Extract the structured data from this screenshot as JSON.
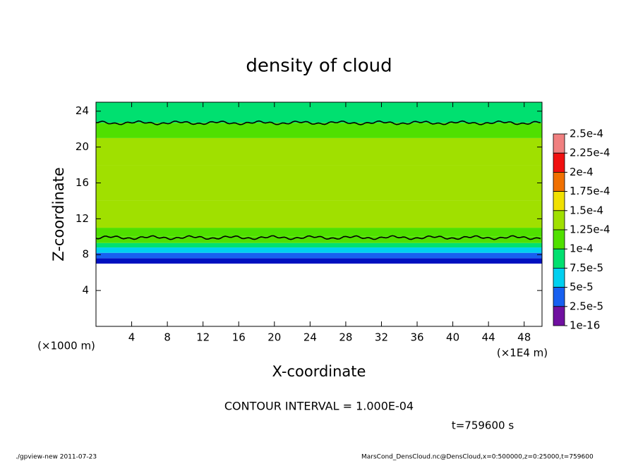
{
  "chart_data": {
    "type": "heatmap",
    "title": "density of cloud",
    "x_label": "X-coordinate",
    "y_label": "Z-coordinate",
    "x_unit": "(×1E4 m)",
    "y_unit": "(×1000 m)",
    "xlim": [
      0,
      50
    ],
    "xticks": [
      4,
      8,
      12,
      16,
      20,
      24,
      28,
      32,
      36,
      40,
      44,
      48
    ],
    "ylim": [
      0,
      25
    ],
    "yticks": [
      4,
      8,
      12,
      16,
      20,
      24
    ],
    "z_bins": [
      7,
      7.6,
      8.2,
      8.8,
      9.3,
      10,
      11,
      14,
      18,
      21,
      22.7,
      25
    ],
    "values": [
      1e-16,
      3e-05,
      6e-05,
      8.5e-05,
      0.000105,
      0.00012,
      0.000135,
      0.00014,
      0.00013,
      0.00011,
      9e-05
    ],
    "contour_lines": [
      9.9,
      22.7
    ],
    "levels": [
      {
        "value": 0.00025,
        "label": "2.5e-4"
      },
      {
        "value": 0.000225,
        "label": "2.25e-4"
      },
      {
        "value": 0.0002,
        "label": "2e-4"
      },
      {
        "value": 0.000175,
        "label": "1.75e-4"
      },
      {
        "value": 0.00015,
        "label": "1.5e-4"
      },
      {
        "value": 0.000125,
        "label": "1.25e-4"
      },
      {
        "value": 0.0001,
        "label": "1e-4"
      },
      {
        "value": 7.5e-05,
        "label": "7.5e-5"
      },
      {
        "value": 5e-05,
        "label": "5e-5"
      },
      {
        "value": 2.5e-05,
        "label": "2.5e-5"
      },
      {
        "value": 1e-16,
        "label": "1e-16"
      }
    ],
    "colors": [
      "#f08080",
      "#f01010",
      "#f07000",
      "#f0e000",
      "#a0e000",
      "#50e000",
      "#00e070",
      "#00d0f0",
      "#1860f0",
      "#0010c0"
    ],
    "bottom_color": "#7010a0",
    "contour_interval": "CONTOUR INTERVAL = 1.000E-04",
    "time_label": "t=759600 s",
    "footer_left": "./gpview-new   2011-07-23",
    "footer_right": "MarsCond_DensCloud.nc@DensCloud,x=0:500000,z=0:25000,t=759600"
  }
}
